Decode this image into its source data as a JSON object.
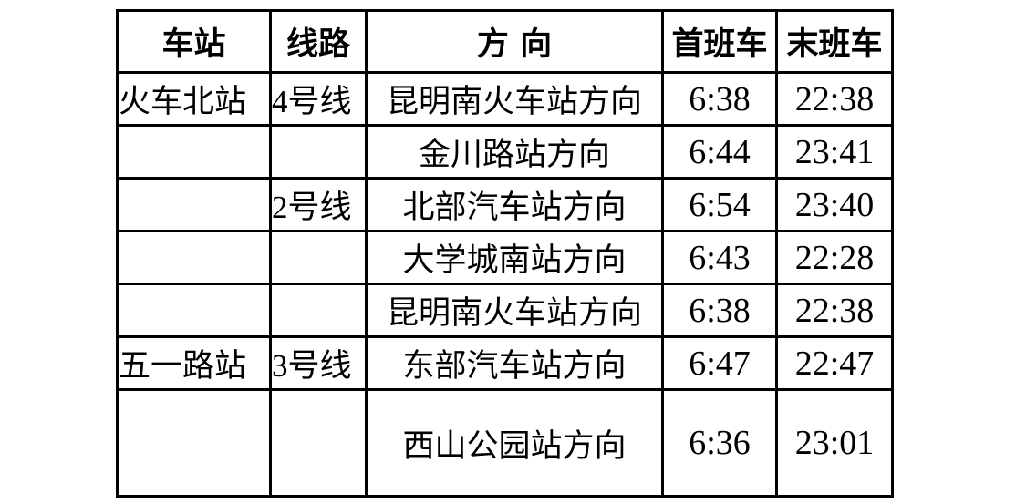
{
  "headers": [
    "车站",
    "线路",
    "方 向",
    "首班车",
    "末班车"
  ],
  "rows": [
    {
      "station": "火车北站",
      "line_num": "4",
      "line_suffix": "号线",
      "direction": "昆明南火车站方向",
      "first": "6:38",
      "last": "22:38"
    },
    {
      "station": "",
      "line_num": "",
      "line_suffix": "",
      "direction": "金川路站方向",
      "first": "6:44",
      "last": "23:41"
    },
    {
      "station": "",
      "line_num": "2",
      "line_suffix": "号线",
      "direction": "北部汽车站方向",
      "first": "6:54",
      "last": "23:40"
    },
    {
      "station": "",
      "line_num": "",
      "line_suffix": "",
      "direction": "大学城南站方向",
      "first": "6:43",
      "last": "22:28"
    },
    {
      "station": "",
      "line_num": "",
      "line_suffix": "",
      "direction": "昆明南火车站方向",
      "first": "6:38",
      "last": "22:38"
    },
    {
      "station": "五一路站",
      "line_num": "3",
      "line_suffix": "号线",
      "direction": "东部汽车站方向",
      "first": "6:47",
      "last": "22:47"
    },
    {
      "station": "",
      "line_num": "",
      "line_suffix": "",
      "direction": "西山公园站方向",
      "first": "6:36",
      "last": "23:01"
    }
  ]
}
